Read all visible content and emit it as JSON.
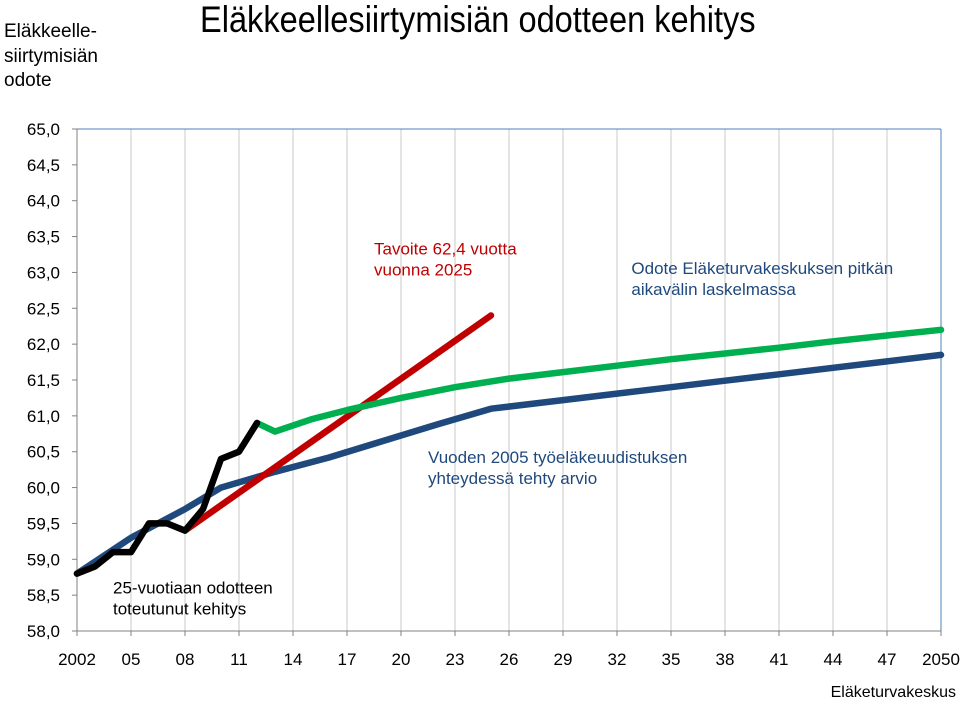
{
  "header": {
    "title": "Eläkkeellesiirtymisiän odotteen kehitys",
    "ylabel_lines": [
      "Eläkkeelle-",
      "siirtymisiän",
      "odote"
    ]
  },
  "footer": {
    "source": "Eläketurvakeskus"
  },
  "chart_data": {
    "type": "line",
    "title": "Eläkkeellesiirtymisiän odotteen kehitys",
    "ylabel": "Eläkkeelle-siirtymisiän odote",
    "xlabel": "",
    "xlim": [
      2002,
      2050
    ],
    "ylim": [
      58.0,
      65.0
    ],
    "y_ticks": [
      "65,0",
      "64,5",
      "64,0",
      "63,5",
      "63,0",
      "62,5",
      "62,0",
      "61,5",
      "61,0",
      "60,5",
      "60,0",
      "59,5",
      "59,0",
      "58,5",
      "58,0"
    ],
    "x_ticks": [
      {
        "x": 2002,
        "label": "2002"
      },
      {
        "x": 2005,
        "label": "05"
      },
      {
        "x": 2008,
        "label": "08"
      },
      {
        "x": 2011,
        "label": "11"
      },
      {
        "x": 2014,
        "label": "14"
      },
      {
        "x": 2017,
        "label": "17"
      },
      {
        "x": 2020,
        "label": "20"
      },
      {
        "x": 2023,
        "label": "23"
      },
      {
        "x": 2026,
        "label": "26"
      },
      {
        "x": 2029,
        "label": "29"
      },
      {
        "x": 2032,
        "label": "32"
      },
      {
        "x": 2035,
        "label": "35"
      },
      {
        "x": 2038,
        "label": "38"
      },
      {
        "x": 2041,
        "label": "41"
      },
      {
        "x": 2044,
        "label": "44"
      },
      {
        "x": 2047,
        "label": "47"
      },
      {
        "x": 2050,
        "label": "2050"
      }
    ],
    "grid": {
      "vertical": true,
      "horizontal": false
    },
    "series": [
      {
        "name": "25-vuotiaan odotteen toteutunut kehitys",
        "color": "#000000",
        "points": [
          [
            2002,
            58.8
          ],
          [
            2003,
            58.9
          ],
          [
            2004,
            59.1
          ],
          [
            2005,
            59.1
          ],
          [
            2006,
            59.5
          ],
          [
            2007,
            59.5
          ],
          [
            2008,
            59.4
          ],
          [
            2009,
            59.7
          ],
          [
            2010,
            60.4
          ],
          [
            2011,
            60.5
          ],
          [
            2012,
            60.9
          ]
        ]
      },
      {
        "name": "Tavoite 62,4 vuotta vuonna 2025",
        "color": "#c00000",
        "points": [
          [
            2008,
            59.4
          ],
          [
            2025,
            62.4
          ]
        ]
      },
      {
        "name": "Odote Eläketurvakeskuksen pitkän aikavälin laskelmassa",
        "color": "#00b050",
        "points": [
          [
            2012,
            60.9
          ],
          [
            2013,
            60.78
          ],
          [
            2015,
            60.95
          ],
          [
            2017,
            61.08
          ],
          [
            2020,
            61.25
          ],
          [
            2023,
            61.4
          ],
          [
            2026,
            61.52
          ],
          [
            2029,
            61.61
          ],
          [
            2032,
            61.7
          ],
          [
            2035,
            61.79
          ],
          [
            2038,
            61.87
          ],
          [
            2041,
            61.95
          ],
          [
            2044,
            62.04
          ],
          [
            2047,
            62.12
          ],
          [
            2050,
            62.2
          ]
        ]
      },
      {
        "name": "Vuoden 2005 työeläkeuudistuksen yhteydessä tehty arvio",
        "color": "#1f497d",
        "points": [
          [
            2002,
            58.8
          ],
          [
            2005,
            59.3
          ],
          [
            2008,
            59.7
          ],
          [
            2010,
            60.0
          ],
          [
            2013,
            60.22
          ],
          [
            2016,
            60.42
          ],
          [
            2019,
            60.65
          ],
          [
            2022,
            60.88
          ],
          [
            2025,
            61.1
          ],
          [
            2029,
            61.22
          ],
          [
            2032,
            61.31
          ],
          [
            2035,
            61.4
          ],
          [
            2038,
            61.49
          ],
          [
            2041,
            61.58
          ],
          [
            2044,
            61.67
          ],
          [
            2047,
            61.76
          ],
          [
            2050,
            61.85
          ]
        ]
      }
    ],
    "annotations": [
      {
        "series": 0,
        "lines": [
          "25-vuotiaan odotteen",
          "toteutunut kehitys"
        ],
        "color": "#000000",
        "at": [
          2004,
          58.52
        ]
      },
      {
        "series": 1,
        "lines": [
          "Tavoite 62,4 vuotta",
          "vuonna 2025"
        ],
        "color": "#c00000",
        "at": [
          2018.5,
          63.25
        ]
      },
      {
        "series": 2,
        "lines": [
          "Odote Eläketurvakeskuksen pitkän",
          "aikavälin laskelmassa"
        ],
        "color": "#1f497d",
        "at": [
          2032.8,
          62.98
        ]
      },
      {
        "series": 3,
        "lines": [
          "Vuoden 2005 työeläkeuudistuksen",
          "yhteydessä tehty arvio"
        ],
        "color": "#1f497d",
        "at": [
          2021.5,
          60.34
        ]
      }
    ]
  }
}
